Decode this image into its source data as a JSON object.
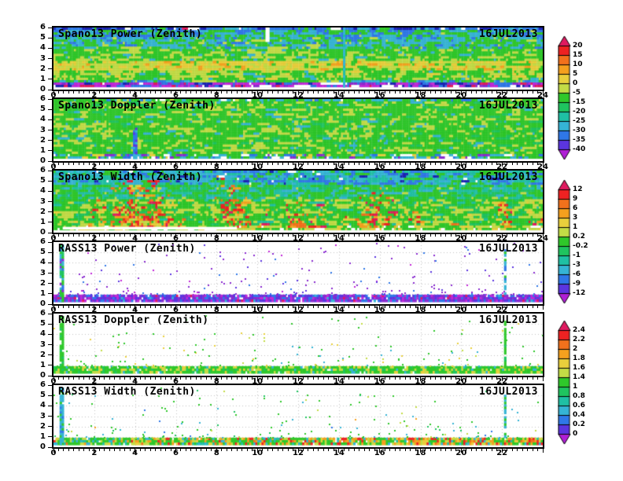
{
  "figure": {
    "date": "16JUL2013"
  },
  "palette": {
    "navy": "#1a22b4",
    "blue": "#2f77e8",
    "cyan": "#35b4d5",
    "teal": "#1fc0a4",
    "seagreen": "#1fc45f",
    "green": "#2fc82a",
    "yellowgreen": "#c3dc46",
    "yellow": "#e9cf3c",
    "orange": "#f5a01e",
    "orangered": "#f2711c",
    "red": "#ee2222",
    "crimson": "#e01a60",
    "violet": "#5b35e0",
    "purple": "#8a2bd0",
    "magenta": "#c226d8",
    "white": "#ffffff"
  },
  "hot_weights": {
    "red": 3,
    "orangered": 2.2,
    "orange": 2.4,
    "yellow": 1.8,
    "crimson": 1.1,
    "yellowgreen": 0.9
  },
  "grid_color": "#c4c4c4",
  "chart_data": [
    {
      "panel": "spano13-power",
      "type": "heatmap",
      "title": "Spano13 Power (Zenith)",
      "date_label": "16JUL2013",
      "xlim": [
        0,
        24
      ],
      "ylim": [
        0,
        6
      ],
      "colorbar": 0,
      "render": "filled",
      "seed": 101,
      "x_tick_labels": [
        "0",
        "2",
        "4",
        "6",
        "8",
        "10",
        "12",
        "14",
        "16",
        "18",
        "20",
        "22",
        "24"
      ],
      "y_tick_labels": [
        "6",
        "5",
        "4",
        "3",
        "2",
        "1",
        "0"
      ],
      "bands": [
        {
          "y": [
            5.7,
            6.0
          ],
          "w": {
            "navy": 3,
            "blue": 3,
            "cyan": 1.5,
            "green": 1.5,
            "white": 0.4,
            "crimson": 0.15
          }
        },
        {
          "y": [
            4.9,
            5.7
          ],
          "w": {
            "blue": 2.2,
            "cyan": 3,
            "green": 2.6,
            "yellowgreen": 0.25
          }
        },
        {
          "y": [
            4.0,
            4.9
          ],
          "w": {
            "cyan": 2.6,
            "green": 3.4,
            "blue": 0.7,
            "yellowgreen": 0.5
          }
        },
        {
          "y": [
            2.7,
            4.0
          ],
          "w": {
            "green": 5,
            "yellowgreen": 2.4,
            "cyan": 0.7
          }
        },
        {
          "y": [
            1.85,
            2.7
          ],
          "w": {
            "yellow": 3.4,
            "yellowgreen": 3,
            "orange": 0.8,
            "green": 1.1
          }
        },
        {
          "y": [
            1.0,
            1.85
          ],
          "w": {
            "green": 3.8,
            "yellowgreen": 2.4,
            "yellow": 0.5,
            "cyan": 0.3
          }
        },
        {
          "y": [
            0.62,
            1.0
          ],
          "w": {
            "green": 2.8,
            "cyan": 1.6,
            "blue": 1.0,
            "yellowgreen": 0.7
          }
        },
        {
          "y": [
            0.3,
            0.62
          ],
          "w": {
            "magenta": 2,
            "purple": 1.5,
            "blue": 1.4,
            "navy": 0.7,
            "crimson": 0.5,
            "white": 0.5
          }
        }
      ],
      "features": [
        {
          "type": "vline",
          "x": 14.2,
          "w": 0.12,
          "y": [
            0.3,
            6
          ],
          "colors": {
            "cyan": 3,
            "teal": 1
          },
          "density": 0.95
        },
        {
          "type": "gap",
          "x": [
            6.6,
            7.15
          ],
          "y": [
            5.75,
            6
          ]
        },
        {
          "type": "gap",
          "x": [
            13.6,
            14.1
          ],
          "y": [
            5.75,
            6
          ]
        },
        {
          "type": "gap",
          "x": [
            10.4,
            10.6
          ],
          "y": [
            4.6,
            6
          ]
        }
      ]
    },
    {
      "panel": "spano13-doppler",
      "type": "heatmap",
      "title": "Spano13 Doppler (Zenith)",
      "date_label": "16JUL2013",
      "xlim": [
        0,
        24
      ],
      "ylim": [
        0,
        6
      ],
      "colorbar": 1,
      "render": "filled",
      "seed": 202,
      "x_tick_labels": [
        "0",
        "2",
        "4",
        "6",
        "8",
        "10",
        "12",
        "14",
        "16",
        "18",
        "20",
        "22",
        "24"
      ],
      "y_tick_labels": [
        "6",
        "5",
        "4",
        "3",
        "2",
        "1",
        "0"
      ],
      "bands": [
        {
          "y": [
            5.75,
            6.0
          ],
          "w": {
            "green": 3.5,
            "cyan": 1.8,
            "blue": 0.8,
            "yellowgreen": 0.8,
            "white": 0.3
          }
        },
        {
          "y": [
            0.62,
            5.75
          ],
          "w": {
            "green": 6,
            "yellowgreen": 2.2,
            "seagreen": 0.7,
            "cyan": 0.45
          }
        },
        {
          "y": [
            0.3,
            0.62
          ],
          "w": {
            "green": 2.4,
            "cyan": 1.1,
            "yellow": 0.7,
            "purple": 0.45,
            "blue": 0.6,
            "white": 0.7
          }
        }
      ],
      "features": [
        {
          "type": "vline",
          "x": 3.9,
          "w": 0.18,
          "y": [
            0.3,
            3.3
          ],
          "colors": {
            "blue": 3,
            "violet": 1.2,
            "cyan": 0.6
          },
          "density": 0.95
        },
        {
          "type": "gap",
          "x": [
            5.2,
            5.5
          ],
          "y": [
            5.8,
            6
          ]
        },
        {
          "type": "gap",
          "x": [
            8.2,
            8.5
          ],
          "y": [
            5.8,
            6
          ]
        }
      ]
    },
    {
      "panel": "spano13-width",
      "type": "heatmap",
      "title": "Spano13 Width (Zenith)",
      "date_label": "16JUL2013",
      "xlim": [
        0,
        24
      ],
      "ylim": [
        0,
        6
      ],
      "colorbar": 1,
      "render": "filled",
      "seed": 303,
      "x_tick_labels": [
        "0",
        "2",
        "4",
        "6",
        "8",
        "10",
        "12",
        "14",
        "16",
        "18",
        "20",
        "22",
        "24"
      ],
      "y_tick_labels": [
        "6",
        "5",
        "4",
        "3",
        "2",
        "1",
        "0"
      ],
      "bands": [
        {
          "y": [
            4.6,
            6.0
          ],
          "w": {
            "teal": 3,
            "cyan": 2.5,
            "blue": 1.6,
            "green": 1.4,
            "navy": 0.35,
            "white": 0.25
          }
        },
        {
          "y": [
            3.2,
            4.6
          ],
          "w": {
            "green": 3.2,
            "teal": 2.1,
            "seagreen": 1.5,
            "cyan": 1.0,
            "yellowgreen": 0.4
          }
        },
        {
          "y": [
            0.58,
            3.2
          ],
          "w": {
            "green": 4.4,
            "yellowgreen": 1.9,
            "seagreen": 1.0,
            "teal": 0.4,
            "yellow": 0.35
          }
        },
        {
          "y": [
            0.3,
            0.58
          ],
          "w": {
            "green": 2,
            "yellowgreen": 1.4,
            "yellow": 0.7,
            "white": 0.9
          }
        }
      ],
      "hot": [
        {
          "x": [
            1.7,
            2.5
          ],
          "ytop": 3.2,
          "s": 0.5
        },
        {
          "x": [
            2.8,
            5.7
          ],
          "ytop": 5.2,
          "s": 0.7
        },
        {
          "x": [
            6.1,
            6.6
          ],
          "ytop": 1.8,
          "s": 0.4
        },
        {
          "x": [
            7.9,
            9.7
          ],
          "ytop": 5.5,
          "s": 0.65
        },
        {
          "x": [
            10.0,
            10.5
          ],
          "ytop": 2.4,
          "s": 0.45
        },
        {
          "x": [
            11.2,
            13.4
          ],
          "ytop": 2.9,
          "s": 0.55
        },
        {
          "x": [
            14.0,
            14.4
          ],
          "ytop": 2.2,
          "s": 0.4
        },
        {
          "x": [
            14.8,
            16.8
          ],
          "ytop": 4.3,
          "s": 0.6
        },
        {
          "x": [
            17.4,
            18.2
          ],
          "ytop": 2.1,
          "s": 0.4
        },
        {
          "x": [
            19.4,
            19.9
          ],
          "ytop": 1.6,
          "s": 0.35
        },
        {
          "x": [
            21.8,
            22.5
          ],
          "ytop": 5.0,
          "s": 0.5
        },
        {
          "x": [
            23.2,
            24.0
          ],
          "ytop": 2.3,
          "s": 0.45
        }
      ],
      "features": [
        {
          "type": "gap",
          "x": [
            0.45,
            9.0
          ],
          "y": [
            0.3,
            0.56
          ]
        }
      ]
    },
    {
      "panel": "rass13-power",
      "type": "heatmap",
      "title": "RASS13 Power (Zenith)",
      "date_label": "16JUL2013",
      "xlim": [
        0,
        24
      ],
      "ylim": [
        0,
        6
      ],
      "colorbar": 2,
      "render": "sparse",
      "seed": 404,
      "x_tick_labels": [
        "0",
        "2",
        "4",
        "6",
        "8",
        "10",
        "12",
        "14",
        "16",
        "18",
        "20",
        "22"
      ],
      "y_tick_labels": [
        "6",
        "5",
        "4",
        "3",
        "2",
        "1",
        "0"
      ],
      "band": {
        "y": [
          0.3,
          0.9
        ],
        "fill": 0.94,
        "w": {
          "purple": 3,
          "violet": 2.4,
          "blue": 2,
          "magenta": 1.6,
          "crimson": 0.35,
          "cyan": 0.3
        }
      },
      "dots": {
        "count": 240,
        "w": {
          "purple": 5,
          "violet": 1.8,
          "blue": 1.1,
          "magenta": 0.9
        }
      },
      "streaks": [
        {
          "x": 0.32,
          "w": 0.16,
          "y": [
            0.3,
            5.7
          ],
          "colors": {
            "green": 2,
            "seagreen": 1,
            "cyan": 1.6,
            "blue": 0.8,
            "purple": 0.5
          },
          "density": 0.92
        },
        {
          "x": 22.1,
          "w": 0.13,
          "y": [
            0.85,
            5.3
          ],
          "colors": {
            "cyan": 2.4,
            "blue": 1.4,
            "green": 0.8
          },
          "density": 0.85
        }
      ]
    },
    {
      "panel": "rass13-doppler",
      "type": "heatmap",
      "title": "RASS13 Doppler (Zenith)",
      "date_label": "16JUL2013",
      "xlim": [
        0,
        24
      ],
      "ylim": [
        0,
        6
      ],
      "colorbar": 2,
      "render": "sparse",
      "seed": 505,
      "x_tick_labels": [
        "0",
        "2",
        "4",
        "6",
        "8",
        "10",
        "12",
        "14",
        "16",
        "18",
        "20",
        "22"
      ],
      "y_tick_labels": [
        "6",
        "5",
        "4",
        "3",
        "2",
        "1",
        "0"
      ],
      "band": {
        "y": [
          0.3,
          0.9
        ],
        "fill": 0.95,
        "w": {
          "green": 5,
          "yellowgreen": 1.6,
          "yellow": 0.8,
          "seagreen": 0.9,
          "cyan": 0.5
        }
      },
      "dots": {
        "count": 175,
        "w": {
          "green": 4,
          "yellow": 1.1,
          "cyan": 1,
          "yellowgreen": 0.9
        }
      },
      "streaks": [
        {
          "x": 0.32,
          "w": 0.16,
          "y": [
            0.3,
            5.7
          ],
          "colors": {
            "green": 4,
            "seagreen": 1
          },
          "density": 0.93
        },
        {
          "x": 22.1,
          "w": 0.13,
          "y": [
            0.85,
            5.3
          ],
          "colors": {
            "green": 3,
            "seagreen": 0.7
          },
          "density": 0.88
        }
      ]
    },
    {
      "panel": "rass13-width",
      "type": "heatmap",
      "title": "RASS13 Width (Zenith)",
      "date_label": "16JUL2013",
      "xlim": [
        0,
        24
      ],
      "ylim": [
        0,
        6
      ],
      "colorbar": 2,
      "render": "sparse",
      "seed": 606,
      "x_tick_labels": [
        "0",
        "2",
        "4",
        "6",
        "8",
        "10",
        "12",
        "14",
        "16",
        "18",
        "20",
        "22"
      ],
      "y_tick_labels": [
        "6",
        "5",
        "4",
        "3",
        "2",
        "1",
        "0"
      ],
      "band": {
        "y": [
          0.3,
          0.9
        ],
        "fill": 0.95,
        "ramp": [
          "orange",
          "orangered",
          "red",
          "yellow"
        ],
        "w": {
          "green": 3.2,
          "yellowgreen": 1.6,
          "orange": 1.3,
          "red": 0.9,
          "cyan": 1.0,
          "yellow": 0.9,
          "teal": 0.5,
          "orangered": 0.5
        }
      },
      "dots": {
        "count": 195,
        "w": {
          "green": 3,
          "cyan": 1.6,
          "seagreen": 1,
          "yellowgreen": 0.8,
          "blue": 0.35,
          "orange": 0.2
        }
      },
      "streaks": [
        {
          "x": 0.32,
          "w": 0.16,
          "y": [
            0.3,
            5.7
          ],
          "colors": {
            "cyan": 3,
            "blue": 0.8,
            "green": 1.2
          },
          "density": 0.93
        },
        {
          "x": 22.1,
          "w": 0.13,
          "y": [
            0.85,
            5.3
          ],
          "colors": {
            "cyan": 2.4,
            "green": 1.4
          },
          "density": 0.88
        }
      ]
    }
  ],
  "colorbars": [
    {
      "name": "power-scale",
      "labels": [
        "20",
        "15",
        "10",
        "5",
        "0",
        "-5",
        "-15",
        "-20",
        "-25",
        "-30",
        "-35",
        "-40"
      ],
      "segment_colors": [
        "#ee2222",
        "#f2711c",
        "#f5a01e",
        "#e9cf3c",
        "#c3dc46",
        "#2fc82a",
        "#1fc45f",
        "#1fc0a4",
        "#35b4d5",
        "#2f77e8",
        "#5b35e0"
      ],
      "arrow_top_color": "#e01a60",
      "arrow_bottom_color": "#b01fd6"
    },
    {
      "name": "doppler-width-scale",
      "labels": [
        "12",
        "9",
        "6",
        "3",
        "1",
        "0.2",
        "-0.2",
        "-1",
        "-3",
        "-6",
        "-9",
        "-12"
      ],
      "segment_colors": [
        "#ee2222",
        "#f2711c",
        "#f5a01e",
        "#e9cf3c",
        "#c3dc46",
        "#2fc82a",
        "#1fc45f",
        "#1fc0a4",
        "#35b4d5",
        "#2f77e8",
        "#5b35e0"
      ],
      "arrow_top_color": "#e01a60",
      "arrow_bottom_color": "#b01fd6"
    },
    {
      "name": "rass-scale",
      "labels": [
        "2.4",
        "2.2",
        "2",
        "1.8",
        "1.6",
        "1.4",
        "1",
        "0.8",
        "0.6",
        "0.4",
        "0.2",
        "0"
      ],
      "segment_colors": [
        "#ee2222",
        "#f2711c",
        "#f5a01e",
        "#e9cf3c",
        "#c3dc46",
        "#2fc82a",
        "#1fc45f",
        "#1fc0a4",
        "#35b4d5",
        "#2f77e8",
        "#5b35e0"
      ],
      "arrow_top_color": "#e01a60",
      "arrow_bottom_color": "#b01fd6"
    }
  ]
}
